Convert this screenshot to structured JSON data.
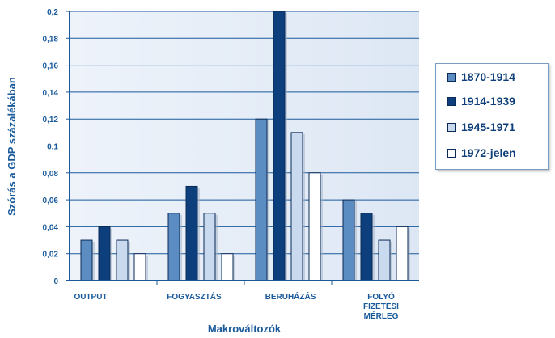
{
  "chart_data": {
    "type": "bar",
    "ylabel": "Szórás a GDP százalékában",
    "xlabel": "Makrováltozók",
    "ylim": [
      0,
      0.2
    ],
    "yticks": [
      "0",
      "0,02",
      "0,04",
      "0,06",
      "0,08",
      "0,1",
      "0,12",
      "0,14",
      "0,16",
      "0,18",
      "0,2"
    ],
    "categories": [
      [
        "OUTPUT"
      ],
      [
        "FOGYASZTÁS"
      ],
      [
        "BERUHÁZÁS"
      ],
      [
        "FOLYÓ",
        "FIZETÉSI",
        "MÉRLEG"
      ]
    ],
    "series": [
      {
        "name": "1870-1914",
        "color": "#5b8cc2",
        "values": [
          0.03,
          0.05,
          0.12,
          0.06
        ]
      },
      {
        "name": "1914-1939",
        "color": "#0c3f7c",
        "values": [
          0.04,
          0.07,
          0.2,
          0.05
        ]
      },
      {
        "name": "1945-1971",
        "color": "#c9d9ee",
        "values": [
          0.03,
          0.05,
          0.11,
          0.03
        ]
      },
      {
        "name": "1972-jelen",
        "color": "#ffffff",
        "values": [
          0.02,
          0.02,
          0.08,
          0.04
        ]
      }
    ],
    "legend_position": "right",
    "grid": true
  }
}
